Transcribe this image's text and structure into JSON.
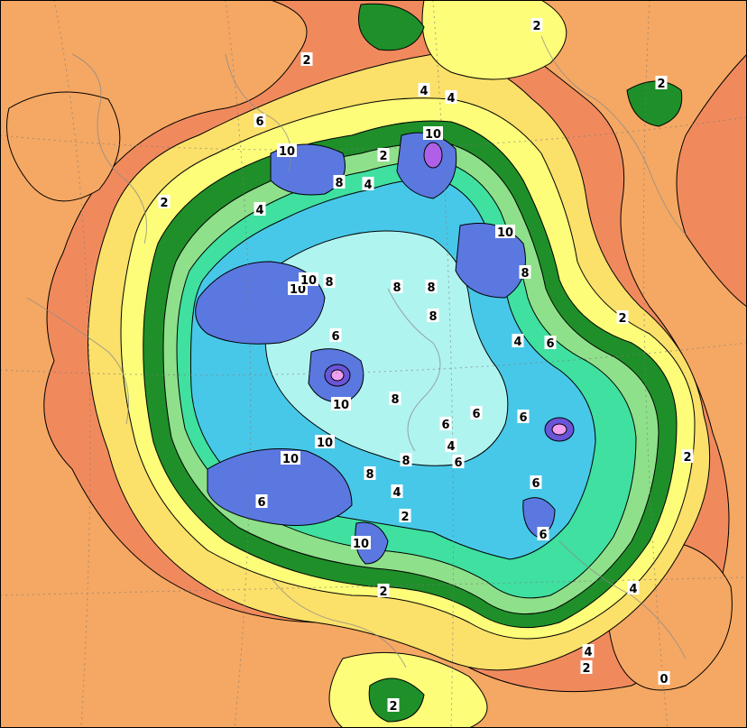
{
  "map": {
    "colors": {
      "c0": "#f08a5d",
      "c1": "#f5a863",
      "c2": "#fbe06a",
      "c3": "#fdfd7a",
      "c4": "#1f8f2a",
      "c5": "#8fe08a",
      "c6": "#3fe0a0",
      "c7": "#48c8e8",
      "c8": "#b0f4f0",
      "c9": "#5a78e0",
      "c10": "#6a55d8",
      "c11": "#b060e8",
      "c12": "#f0a0f0"
    },
    "labels": [
      "2",
      "2",
      "2",
      "2",
      "4",
      "4",
      "4",
      "6",
      "10",
      "10",
      "8",
      "4",
      "2",
      "10",
      "8",
      "8",
      "8",
      "10",
      "10",
      "8",
      "6",
      "8",
      "4",
      "6",
      "10",
      "8",
      "6",
      "6",
      "10",
      "10",
      "6",
      "8",
      "8",
      "4",
      "6",
      "4",
      "2",
      "6",
      "10",
      "6",
      "6",
      "2",
      "2",
      "4",
      "4",
      "2",
      "0",
      "2",
      "2"
    ]
  }
}
